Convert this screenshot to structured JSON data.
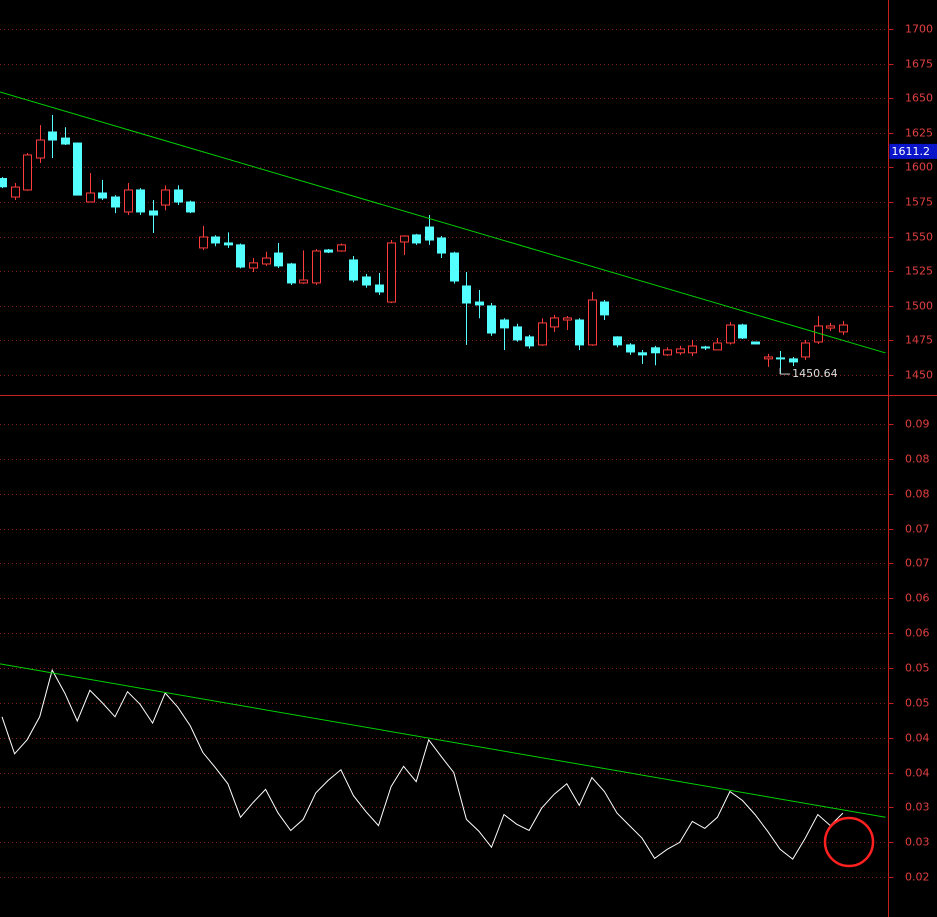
{
  "chart_data": [
    {
      "type": "candlestick",
      "open": [
        1592,
        1578.6,
        1583.7,
        1606.8,
        1625.6,
        1621.2,
        1617.6,
        1575,
        1581.5,
        1578.6,
        1567.8,
        1583.7,
        1568.5,
        1572.8,
        1583.7,
        1575,
        1541.8,
        1549.7,
        1545.4,
        1544,
        1527.3,
        1530.2,
        1538.1,
        1530.2,
        1516.5,
        1516.5,
        1540.3,
        1539.6,
        1533.1,
        1520.8,
        1515,
        1502.7,
        1546.1,
        1551.2,
        1556.9,
        1549,
        1538.1,
        1514.3,
        1502.7,
        1499.9,
        1489.7,
        1484.7,
        1477.5,
        1471.7,
        1484.7,
        1489.7,
        1489.7,
        1471.7,
        1502.7,
        1477.5,
        1471.7,
        1466,
        1469.6,
        1464.5,
        1466,
        1466,
        1470.2,
        1468.1,
        1473.1,
        1486.1,
        1473.8,
        1461.6,
        1462.3,
        1461.6,
        1463,
        1473.8,
        1483.9,
        1481.1
      ],
      "high": [
        1593,
        1588.7,
        1610.4,
        1630.6,
        1637.9,
        1629,
        1618,
        1596,
        1591,
        1580,
        1588.7,
        1585,
        1576.4,
        1587,
        1587,
        1576,
        1557.7,
        1551,
        1553,
        1545,
        1534.5,
        1539,
        1545.4,
        1531,
        1540,
        1541,
        1541,
        1545,
        1536,
        1523,
        1523.7,
        1547.5,
        1551,
        1552,
        1565.6,
        1550.4,
        1539,
        1524.4,
        1511.4,
        1502,
        1491,
        1487,
        1479,
        1491,
        1493.4,
        1492.6,
        1491,
        1510,
        1504.2,
        1478,
        1473,
        1468,
        1471,
        1470,
        1471,
        1475.3,
        1471,
        1476.7,
        1488.3,
        1487,
        1474,
        1465.2,
        1467.3,
        1463,
        1475.3,
        1492.6,
        1487.6,
        1489
      ],
      "low": [
        1585,
        1576.4,
        1583,
        1603.2,
        1606.8,
        1616.2,
        1580,
        1575,
        1576.4,
        1567,
        1565.6,
        1565.6,
        1552.6,
        1569,
        1572.8,
        1567,
        1540.3,
        1543,
        1541.8,
        1527,
        1524.4,
        1528.8,
        1527.3,
        1515,
        1515.8,
        1515,
        1538,
        1539,
        1517,
        1513,
        1507.8,
        1502,
        1536.7,
        1544,
        1544,
        1534.5,
        1516,
        1471.7,
        1491,
        1478.2,
        1468,
        1474,
        1469,
        1471,
        1481,
        1482.5,
        1468,
        1471,
        1489.7,
        1470,
        1464.5,
        1458,
        1457,
        1463.7,
        1464.5,
        1463.7,
        1468,
        1468,
        1472,
        1476,
        1472,
        1455.8,
        1450.64,
        1456.5,
        1460.9,
        1472.4,
        1481.8,
        1478.9
      ],
      "close": [
        1586,
        1585.8,
        1609,
        1619.8,
        1619.8,
        1616.9,
        1580,
        1581.5,
        1577.9,
        1571.4,
        1583.7,
        1567.8,
        1565.6,
        1583.7,
        1575,
        1567.8,
        1549.7,
        1545.4,
        1544,
        1528,
        1531,
        1534.5,
        1528.8,
        1516.5,
        1518.6,
        1539.6,
        1538.8,
        1544,
        1518.6,
        1515,
        1510,
        1545.4,
        1550.4,
        1545.4,
        1547.5,
        1538.1,
        1517.9,
        1502,
        1500.6,
        1480.3,
        1484,
        1475.3,
        1471,
        1487.6,
        1491.2,
        1491.2,
        1471.7,
        1504.2,
        1493.4,
        1471.7,
        1466.6,
        1464.5,
        1466,
        1468.1,
        1468.8,
        1470.9,
        1469.5,
        1473.1,
        1486.1,
        1476.7,
        1472.4,
        1463,
        1461.6,
        1459.4,
        1473.1,
        1485.4,
        1485.4,
        1486.1
      ],
      "up_color": "#ff3c3c",
      "down_color": "#54ffff",
      "ylim": [
        1435.5,
        1721
      ],
      "yticks": [
        1450,
        1475,
        1500,
        1525,
        1550,
        1575,
        1600,
        1625,
        1650,
        1675,
        1700
      ],
      "grid": true,
      "price_label": 1611.2,
      "trendline": {
        "color": "#00d000",
        "x": [
          -0.16,
          70.4
        ],
        "y": [
          1654.5,
          1465.9
        ]
      }
    },
    {
      "type": "line",
      "values": [
        0.048,
        0.0427,
        0.0447,
        0.048,
        0.0547,
        0.0514,
        0.0474,
        0.0518,
        0.05,
        0.048,
        0.0516,
        0.0498,
        0.0471,
        0.0514,
        0.0494,
        0.0467,
        0.0429,
        0.0407,
        0.0384,
        0.0336,
        0.0357,
        0.0376,
        0.0342,
        0.0317,
        0.0333,
        0.0371,
        0.0389,
        0.0404,
        0.0367,
        0.0344,
        0.0324,
        0.038,
        0.0409,
        0.0387,
        0.0447,
        0.0423,
        0.04,
        0.0333,
        0.0316,
        0.0293,
        0.034,
        0.0326,
        0.0317,
        0.0349,
        0.0369,
        0.0384,
        0.0353,
        0.0393,
        0.0373,
        0.0342,
        0.0324,
        0.0306,
        0.0277,
        0.029,
        0.03,
        0.033,
        0.032,
        0.0336,
        0.0373,
        0.036,
        0.034,
        0.0316,
        0.029,
        0.0276,
        0.0306,
        0.034,
        0.0324,
        0.0342
      ],
      "color": "#ffffff",
      "ylim": [
        0.0193,
        0.094
      ],
      "yticks": [
        0.09,
        {
          "value": 0.085,
          "label": "0.08"
        },
        0.08,
        {
          "value": 0.075,
          "label": "0.07"
        },
        0.07,
        {
          "value": 0.065,
          "label": "0.06"
        },
        0.06,
        {
          "value": 0.055,
          "label": "0.05"
        },
        0.05,
        {
          "value": 0.045,
          "label": "0.04"
        },
        0.04,
        {
          "value": 0.035,
          "label": "0.03"
        },
        0.03,
        {
          "value": 0.025,
          "label": "0.02"
        }
      ],
      "grid": true,
      "trendline": {
        "color": "#00d000",
        "x": [
          -0.16,
          70.4
        ],
        "y": [
          0.0556,
          0.0336
        ]
      }
    }
  ]
}
